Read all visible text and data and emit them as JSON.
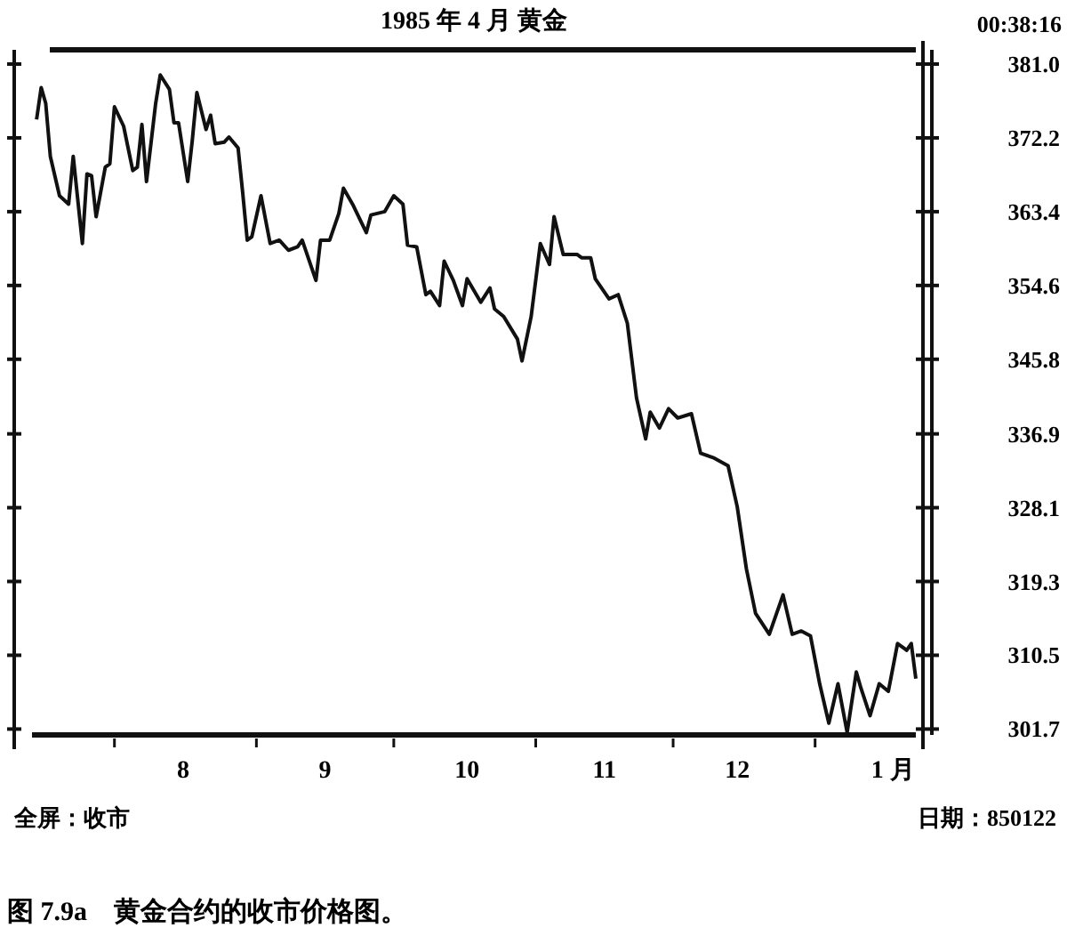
{
  "chart_data": {
    "type": "line",
    "title": "1985 年 4 月 黄金",
    "annotations": [
      "00:38:16",
      "全屏：收市",
      "日期：850122",
      "图 7.9a　黄金合约的收市价格图。"
    ],
    "x": [
      "1984-07-15",
      "1984-07-16",
      "1984-07-17",
      "1984-07-18",
      "1984-07-20",
      "1984-07-22",
      "1984-07-23",
      "1984-07-25",
      "1984-07-26",
      "1984-07-27",
      "1984-07-28",
      "1984-07-30",
      "1984-07-31",
      "1984-08-01",
      "1984-08-03",
      "1984-08-05",
      "1984-08-06",
      "1984-08-07",
      "1984-08-08",
      "1984-08-10",
      "1984-08-11",
      "1984-08-13",
      "1984-08-14",
      "1984-08-15",
      "1984-08-17",
      "1984-08-18",
      "1984-08-19",
      "1984-08-21",
      "1984-08-22",
      "1984-08-23",
      "1984-08-25",
      "1984-08-26",
      "1984-08-28",
      "1984-08-29",
      "1984-08-30",
      "1984-08-31",
      "1984-09-02",
      "1984-09-04",
      "1984-09-06",
      "1984-09-08",
      "1984-09-10",
      "1984-09-11",
      "1984-09-14",
      "1984-09-15",
      "1984-09-17",
      "1984-09-19",
      "1984-09-20",
      "1984-09-22",
      "1984-09-25",
      "1984-09-26",
      "1984-09-29",
      "1984-10-01",
      "1984-10-03",
      "1984-10-04",
      "1984-10-06",
      "1984-10-08",
      "1984-10-09",
      "1984-10-11",
      "1984-10-12",
      "1984-10-14",
      "1984-10-16",
      "1984-10-17",
      "1984-10-20",
      "1984-10-22",
      "1984-10-23",
      "1984-10-25",
      "1984-10-28",
      "1984-10-29",
      "1984-10-31",
      "1984-11-02",
      "1984-11-04",
      "1984-11-05",
      "1984-11-07",
      "1984-11-10",
      "1984-11-11",
      "1984-11-13",
      "1984-11-14",
      "1984-11-17",
      "1984-11-19",
      "1984-11-21",
      "1984-11-23",
      "1984-11-25",
      "1984-11-26",
      "1984-11-28",
      "1984-11-30",
      "1984-12-02",
      "1984-12-05",
      "1984-12-07",
      "1984-12-10",
      "1984-12-13",
      "1984-12-15",
      "1984-12-17",
      "1984-12-19",
      "1984-12-22",
      "1984-12-25",
      "1984-12-27",
      "1984-12-29",
      "1984-12-31",
      "1985-01-02",
      "1985-01-04",
      "1985-01-06",
      "1985-01-08",
      "1985-01-10",
      "1985-01-11",
      "1985-01-13",
      "1985-01-15",
      "1985-01-17",
      "1985-01-19",
      "1985-01-21",
      "1985-01-22",
      "1985-01-23"
    ],
    "values": [
      374.4,
      378.2,
      376.3,
      370.0,
      365.3,
      364.3,
      370.0,
      359.6,
      367.9,
      367.7,
      362.8,
      368.7,
      369.1,
      375.9,
      373.6,
      368.3,
      368.7,
      373.8,
      367.0,
      376.3,
      379.7,
      378.0,
      374.0,
      374.0,
      367.0,
      371.9,
      377.6,
      373.2,
      374.9,
      371.5,
      371.7,
      372.3,
      371.0,
      365.7,
      360.0,
      360.4,
      365.3,
      359.6,
      360.0,
      358.8,
      359.2,
      360.0,
      355.2,
      360.0,
      360.0,
      363.2,
      366.2,
      364.3,
      360.9,
      363.0,
      363.4,
      365.3,
      364.3,
      359.4,
      359.2,
      353.5,
      353.9,
      352.2,
      357.5,
      355.2,
      352.2,
      355.4,
      352.6,
      354.3,
      351.8,
      350.9,
      348.2,
      345.6,
      350.9,
      359.6,
      357.1,
      362.8,
      358.3,
      358.3,
      357.9,
      357.9,
      355.4,
      353.0,
      353.5,
      350.1,
      341.2,
      336.3,
      339.5,
      337.6,
      339.9,
      338.8,
      339.3,
      334.6,
      334.0,
      333.1,
      328.2,
      320.8,
      315.5,
      313.0,
      317.7,
      313.0,
      313.4,
      312.8,
      307.1,
      302.4,
      307.1,
      301.3,
      308.5,
      306.6,
      303.3,
      307.1,
      306.2,
      311.9,
      311.1,
      311.9,
      307.7
    ],
    "color": "#111111",
    "xlim": [
      "1984-07-14",
      "1985-01-23"
    ],
    "xticks": [
      {
        "value": "1984-08-01",
        "label": null
      },
      {
        "value": "1984-08-16",
        "label": "8"
      },
      {
        "value": "1984-09-01",
        "label": null
      },
      {
        "value": "1984-09-16",
        "label": "9"
      },
      {
        "value": "1984-10-01",
        "label": null
      },
      {
        "value": "1984-10-17",
        "label": "10"
      },
      {
        "value": "1984-11-01",
        "label": null
      },
      {
        "value": "1984-11-16",
        "label": "11"
      },
      {
        "value": "1984-12-01",
        "label": null
      },
      {
        "value": "1984-12-15",
        "label": "12"
      },
      {
        "value": "1985-01-01",
        "label": null
      },
      {
        "value": "1985-01-18",
        "label": "1 月"
      }
    ],
    "ylim": [
      301,
      382.7
    ],
    "yticks": [
      {
        "value": 381,
        "label": "381.0"
      },
      {
        "value": 372.2,
        "label": "372.2"
      },
      {
        "value": 363.4,
        "label": "363.4"
      },
      {
        "value": 354.6,
        "label": "354.6"
      },
      {
        "value": 345.8,
        "label": "345.8"
      },
      {
        "value": 336.9,
        "label": "336.9"
      },
      {
        "value": 328.1,
        "label": "328.1"
      },
      {
        "value": 319.3,
        "label": "319.3"
      },
      {
        "value": 310.5,
        "label": "310.5"
      },
      {
        "value": 301.7,
        "label": "301.7"
      }
    ],
    "grid": false,
    "marker": "none",
    "line_style": "solid"
  }
}
